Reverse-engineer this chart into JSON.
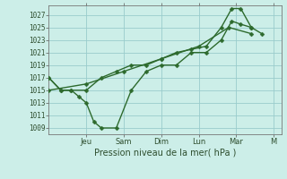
{
  "bg_color": "#cceee8",
  "grid_color": "#99cccc",
  "line_color": "#2d6a2d",
  "marker_color": "#2d6a2d",
  "xlabel": "Pression niveau de la mer( hPa )",
  "ylim": [
    1008,
    1028.5
  ],
  "yticks": [
    1009,
    1011,
    1013,
    1015,
    1017,
    1019,
    1021,
    1023,
    1025,
    1027
  ],
  "x_tick_labels": [
    "Jeu",
    "Sam",
    "Dim",
    "Lun",
    "Mar",
    "M"
  ],
  "x_tick_positions": [
    2.5,
    5.0,
    7.5,
    10.0,
    12.5,
    15.0
  ],
  "xlim": [
    0,
    15.5
  ],
  "series1_x": [
    0.0,
    0.8,
    1.5,
    2.0,
    2.5,
    3.0,
    3.5,
    4.5,
    5.5,
    6.5,
    7.5,
    8.5,
    9.5,
    10.5,
    11.5,
    12.2,
    12.8,
    13.5,
    14.2
  ],
  "series1_y": [
    1017,
    1015,
    1015,
    1014,
    1013,
    1010,
    1009,
    1009,
    1015,
    1018,
    1019,
    1019,
    1021,
    1021,
    1023,
    1026,
    1025.5,
    1025,
    1024
  ],
  "series2_x": [
    0.0,
    0.8,
    1.5,
    2.5,
    3.5,
    4.5,
    5.5,
    6.5,
    7.5,
    8.5,
    9.5,
    10.5,
    11.5,
    12.2,
    12.8,
    13.5
  ],
  "series2_y": [
    1017,
    1015,
    1015,
    1015,
    1017,
    1018,
    1019,
    1019,
    1020,
    1021,
    1021.5,
    1022,
    1025,
    1028,
    1028,
    1025
  ],
  "series3_x": [
    0.0,
    2.5,
    5.0,
    7.5,
    10.0,
    12.0,
    13.5
  ],
  "series3_y": [
    1015,
    1016,
    1018,
    1020,
    1022,
    1025,
    1024
  ]
}
